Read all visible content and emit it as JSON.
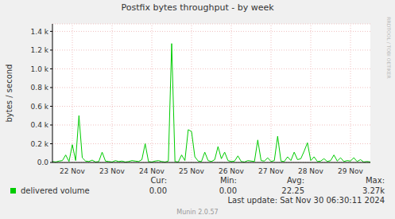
{
  "chart_data": {
    "type": "line",
    "title": "Postfix bytes throughput - by week",
    "y_label": "bytes / second",
    "categories": [
      null,
      null,
      null,
      null,
      null,
      null,
      "22 Nov",
      null,
      null,
      null,
      null,
      null,
      null,
      null,
      null,
      null,
      null,
      null,
      "23 Nov",
      null,
      null,
      null,
      null,
      null,
      null,
      null,
      null,
      null,
      null,
      null,
      "24 Nov",
      null,
      null,
      null,
      null,
      null,
      null,
      null,
      null,
      null,
      null,
      null,
      "25 Nov",
      null,
      null,
      null,
      null,
      null,
      null,
      null,
      null,
      null,
      null,
      null,
      "26 Nov",
      null,
      null,
      null,
      null,
      null,
      null,
      null,
      null,
      null,
      null,
      null,
      "27 Nov",
      null,
      null,
      null,
      null,
      null,
      null,
      null,
      null,
      null,
      null,
      null,
      "28 Nov",
      null,
      null,
      null,
      null,
      null,
      null,
      null,
      null,
      null,
      null,
      null,
      "29 Nov",
      null,
      null,
      null,
      null,
      null,
      null
    ],
    "series": [
      {
        "name": "delivered volume",
        "color": "#00cc00",
        "values": [
          10,
          5,
          15,
          20,
          80,
          10,
          190,
          20,
          500,
          50,
          15,
          10,
          25,
          5,
          10,
          110,
          15,
          10,
          5,
          20,
          10,
          15,
          5,
          10,
          20,
          15,
          10,
          30,
          200,
          10,
          5,
          15,
          20,
          10,
          5,
          15,
          1270,
          10,
          5,
          80,
          20,
          350,
          330,
          60,
          15,
          10,
          110,
          20,
          10,
          30,
          170,
          40,
          110,
          20,
          10,
          15,
          70,
          10,
          5,
          20,
          15,
          10,
          240,
          20,
          15,
          50,
          10,
          20,
          280,
          15,
          10,
          60,
          20,
          110,
          30,
          40,
          120,
          210,
          20,
          60,
          10,
          15,
          40,
          10,
          20,
          80,
          15,
          50,
          10,
          20,
          15,
          50,
          10,
          30,
          5,
          10,
          5
        ]
      }
    ],
    "ylim": [
      0,
      1480
    ],
    "yticks": [
      {
        "value": 0,
        "label": "0.0"
      },
      {
        "value": 200,
        "label": "0.2 k"
      },
      {
        "value": 400,
        "label": "0.4 k"
      },
      {
        "value": 600,
        "label": "0.6 k"
      },
      {
        "value": 800,
        "label": "0.8 k"
      },
      {
        "value": 1000,
        "label": "1.0 k"
      },
      {
        "value": 1200,
        "label": "1.2 k"
      },
      {
        "value": 1400,
        "label": "1.4 k"
      }
    ],
    "grid": true,
    "legend_stats": [
      {
        "label": "Cur:",
        "value": "0.00"
      },
      {
        "label": "Min:",
        "value": "0.00"
      },
      {
        "label": "Avg:",
        "value": "22.25"
      },
      {
        "label": "Max:",
        "value": "3.27k"
      }
    ],
    "last_update": "Last update: Sat Nov 30 06:30:11 2024",
    "footer": "Munin 2.0.57",
    "watermark": "RRDTOOL / TOBI OETIKER"
  }
}
